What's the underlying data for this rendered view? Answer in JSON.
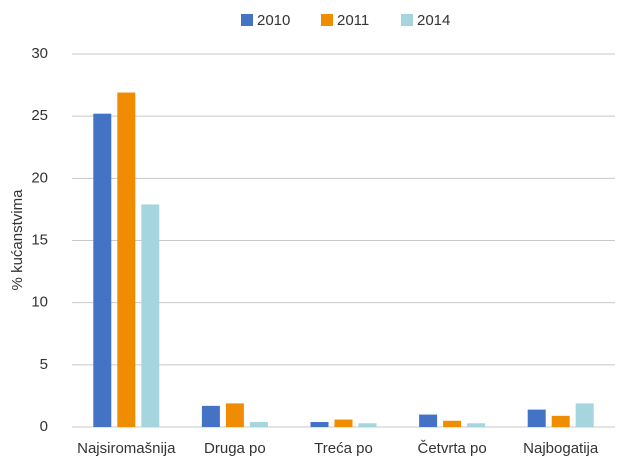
{
  "chart_data": {
    "type": "bar",
    "y_label": "% kućanstvima",
    "categories": [
      "Najsiromašnija",
      "Druga po",
      "Treća po",
      "Četvrta po",
      "Najbogatija"
    ],
    "series": [
      {
        "name": "2010",
        "color": "#4472c4",
        "values": [
          25.2,
          1.7,
          0.4,
          1.0,
          1.4
        ]
      },
      {
        "name": "2011",
        "color": "#f08c00",
        "values": [
          26.9,
          1.9,
          0.6,
          0.5,
          0.9
        ]
      },
      {
        "name": "2014",
        "color": "#a5d5de",
        "values": [
          17.9,
          0.4,
          0.3,
          0.3,
          1.9
        ]
      }
    ],
    "ylim": [
      0,
      30
    ],
    "yticks": [
      0,
      5,
      10,
      15,
      20,
      25,
      30
    ],
    "grid": true,
    "legend": "top"
  }
}
